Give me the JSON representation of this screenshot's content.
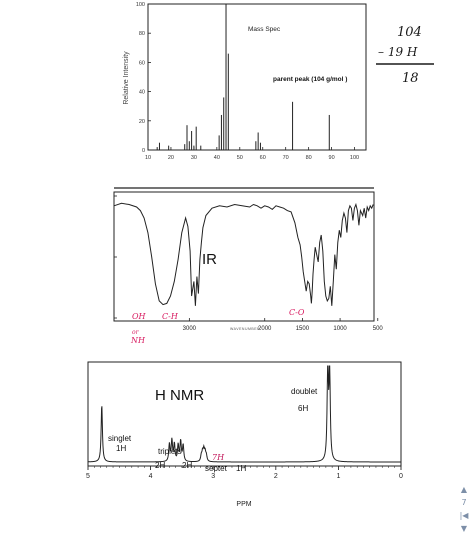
{
  "colors": {
    "axis": "#222222",
    "spectrum": "#222222",
    "annotation_ink": "#1a1a1a",
    "handwriting_red": "#d81b60",
    "nav": "#7d8fa8"
  },
  "chart_data": [
    {
      "type": "bar",
      "title": "Mass Spec",
      "ylabel": "Relative Intensity",
      "annotation": "parent peak  (104 g/mol )",
      "xlim": [
        10,
        105
      ],
      "ylim": [
        0,
        100
      ],
      "xticks": [
        "10",
        "20",
        "30",
        "40",
        "50",
        "60",
        "70",
        "80",
        "90",
        "100"
      ],
      "yticks": [
        "0",
        "20",
        "40",
        "60",
        "80",
        "100"
      ],
      "peaks": [
        {
          "x": 14,
          "y": 2
        },
        {
          "x": 15,
          "y": 5
        },
        {
          "x": 19,
          "y": 3
        },
        {
          "x": 26,
          "y": 4
        },
        {
          "x": 27,
          "y": 17
        },
        {
          "x": 28,
          "y": 6
        },
        {
          "x": 29,
          "y": 13
        },
        {
          "x": 30,
          "y": 3
        },
        {
          "x": 31,
          "y": 16
        },
        {
          "x": 33,
          "y": 3
        },
        {
          "x": 41,
          "y": 10
        },
        {
          "x": 42,
          "y": 24
        },
        {
          "x": 43,
          "y": 36
        },
        {
          "x": 44,
          "y": 100
        },
        {
          "x": 45,
          "y": 66
        },
        {
          "x": 57,
          "y": 6
        },
        {
          "x": 58,
          "y": 12
        },
        {
          "x": 59,
          "y": 5
        },
        {
          "x": 73,
          "y": 33
        },
        {
          "x": 89,
          "y": 24
        }
      ],
      "handwriting": {
        "line1": "104",
        "line2": "– 19 H",
        "line3": "18"
      }
    },
    {
      "type": "line",
      "title": "IR",
      "xlim": [
        4000,
        550
      ],
      "xticks": [
        "3000",
        "2000",
        "1500",
        "1000",
        "500"
      ],
      "xlabel": "WAVENUMBER",
      "yticks": [
        "",
        "",
        ""
      ],
      "series": [
        {
          "x": [
            4000,
            3900,
            3800,
            3700,
            3650,
            3600,
            3550,
            3500,
            3450,
            3400,
            3350,
            3300,
            3250,
            3200,
            3150,
            3100,
            3050,
            3020,
            2990,
            2970,
            2940,
            2920,
            2900,
            2880,
            2860,
            2840,
            2820,
            2780,
            2700,
            2600,
            2500,
            2400,
            2300,
            2200,
            2150,
            2100,
            2050,
            2000,
            1950,
            1900,
            1850,
            1800,
            1750,
            1700,
            1650,
            1600,
            1560,
            1530,
            1510,
            1490,
            1470,
            1450,
            1430,
            1410,
            1390,
            1380,
            1370,
            1360,
            1345,
            1330,
            1310,
            1290,
            1270,
            1250,
            1230,
            1210,
            1190,
            1170,
            1150,
            1130,
            1110,
            1090,
            1070,
            1050,
            1030,
            1010,
            990,
            970,
            950,
            930,
            910,
            890,
            870,
            850,
            830,
            810,
            790,
            770,
            750,
            730,
            700,
            680,
            660,
            640,
            620,
            600,
            580,
            560
          ],
          "y": [
            92,
            94,
            93,
            91,
            88,
            82,
            70,
            50,
            28,
            14,
            11,
            12,
            18,
            30,
            48,
            70,
            82,
            75,
            55,
            18,
            30,
            10,
            34,
            20,
            48,
            62,
            74,
            84,
            90,
            92,
            91,
            93,
            92,
            91,
            93,
            92,
            90,
            92,
            91,
            89,
            92,
            91,
            90,
            88,
            87,
            78,
            66,
            60,
            50,
            38,
            30,
            22,
            30,
            28,
            18,
            12,
            22,
            36,
            48,
            58,
            52,
            46,
            62,
            68,
            55,
            30,
            18,
            14,
            16,
            26,
            10,
            30,
            52,
            40,
            62,
            72,
            66,
            80,
            86,
            82,
            70,
            88,
            92,
            90,
            80,
            90,
            93,
            88,
            76,
            88,
            84,
            90,
            82,
            91,
            88,
            92,
            90,
            93
          ]
        }
      ],
      "labels": {
        "oh": "OH",
        "ch": "C-H",
        "co": "C-O",
        "nh_or": "or",
        "nh": "NH"
      }
    },
    {
      "type": "line",
      "title": "H NMR",
      "xlabel": "PPM",
      "xlim": [
        5,
        0
      ],
      "xticks": [
        "5",
        "4",
        "3",
        "2",
        "1",
        "0"
      ],
      "peaks": [
        {
          "ppm": 4.78,
          "height": 0.6
        },
        {
          "ppm": 3.7,
          "height": 0.18
        },
        {
          "ppm": 3.66,
          "height": 0.22
        },
        {
          "ppm": 3.62,
          "height": 0.18
        },
        {
          "ppm": 3.56,
          "height": 0.17
        },
        {
          "ppm": 3.52,
          "height": 0.21
        },
        {
          "ppm": 3.48,
          "height": 0.17
        },
        {
          "ppm": 3.19,
          "height": 0.06
        },
        {
          "ppm": 3.17,
          "height": 0.09
        },
        {
          "ppm": 3.15,
          "height": 0.11
        },
        {
          "ppm": 3.13,
          "height": 0.09
        },
        {
          "ppm": 3.11,
          "height": 0.06
        },
        {
          "ppm": 1.17,
          "height": 0.98
        },
        {
          "ppm": 1.14,
          "height": 0.94
        }
      ],
      "annotations": {
        "singlet": "singlet",
        "singlet_h": "1H",
        "triplets": "triplets",
        "trip_2h_a": "2H",
        "trip_2h_b": "2H",
        "septet": "septet",
        "septet_h": "1H",
        "doublet": "doublet",
        "doublet_h": "6H",
        "hand_7h": "7H"
      }
    }
  ],
  "nav": {
    "up": "▲",
    "page": "7",
    "first": "|◀",
    "down": "▼"
  }
}
